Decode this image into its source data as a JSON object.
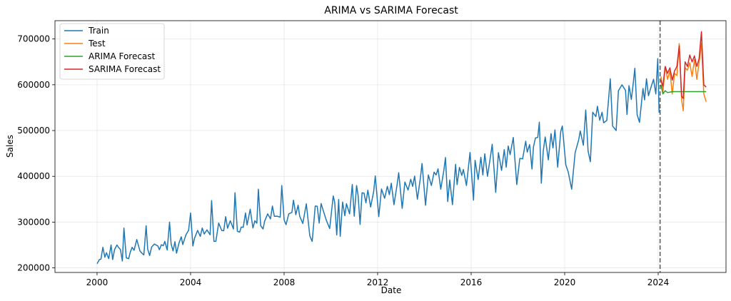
{
  "chart_data": {
    "type": "line",
    "title": "ARIMA vs SARIMA Forecast",
    "xlabel": "Date",
    "ylabel": "Sales",
    "xlim": [
      1998.2,
      2026.9
    ],
    "ylim": [
      190000,
      740000
    ],
    "xticks": [
      2000,
      2004,
      2008,
      2012,
      2016,
      2020,
      2024
    ],
    "xtick_labels": [
      "2000",
      "2004",
      "2008",
      "2012",
      "2016",
      "2020",
      "2024"
    ],
    "yticks": [
      200000,
      300000,
      400000,
      500000,
      600000,
      700000
    ],
    "ytick_labels": [
      "200000",
      "300000",
      "400000",
      "500000",
      "600000",
      "700000"
    ],
    "grid": true,
    "legend_position": "top-left",
    "split_date": 2024.08,
    "train_base": {
      "start": 2000.0,
      "end": 2024.04,
      "v0": 215000,
      "v1": 570000,
      "amp0": 12000,
      "amp1": 30000,
      "curve": 0.3
    },
    "series": [
      {
        "name": "Train",
        "color": "#1f77b4",
        "keypoints": [
          [
            2000.0,
            209000
          ],
          [
            2000.1,
            218000
          ],
          [
            2000.25,
            245000
          ],
          [
            2000.4,
            233000
          ],
          [
            2000.6,
            250000
          ],
          [
            2000.75,
            240000
          ],
          [
            2000.85,
            250000
          ],
          [
            2001.0,
            240000
          ],
          [
            2001.15,
            287000
          ],
          [
            2001.25,
            222000
          ],
          [
            2001.35,
            220000
          ],
          [
            2001.5,
            245000
          ],
          [
            2001.7,
            262000
          ],
          [
            2001.9,
            233000
          ],
          [
            2002.1,
            292000
          ],
          [
            2002.25,
            227000
          ],
          [
            2002.45,
            252000
          ],
          [
            2002.6,
            248000
          ],
          [
            2002.9,
            258000
          ],
          [
            2003.1,
            300000
          ],
          [
            2003.25,
            237000
          ],
          [
            2003.4,
            232000
          ],
          [
            2003.6,
            268000
          ],
          [
            2003.8,
            272000
          ],
          [
            2004.0,
            320000
          ],
          [
            2004.1,
            248000
          ],
          [
            2004.3,
            282000
          ],
          [
            2004.5,
            287000
          ],
          [
            2004.7,
            283000
          ],
          [
            2004.9,
            347000
          ],
          [
            2005.0,
            258000
          ],
          [
            2005.2,
            298000
          ],
          [
            2005.5,
            312000
          ],
          [
            2005.7,
            303000
          ],
          [
            2005.9,
            364000
          ],
          [
            2006.0,
            280000
          ],
          [
            2006.1,
            278000
          ],
          [
            2006.35,
            320000
          ],
          [
            2006.55,
            328000
          ],
          [
            2006.75,
            303000
          ],
          [
            2006.9,
            372000
          ],
          [
            2007.0,
            292000
          ],
          [
            2007.1,
            285000
          ],
          [
            2007.3,
            318000
          ],
          [
            2007.5,
            335000
          ],
          [
            2007.7,
            313000
          ],
          [
            2007.9,
            380000
          ],
          [
            2008.0,
            305000
          ],
          [
            2008.2,
            318000
          ],
          [
            2008.4,
            348000
          ],
          [
            2008.6,
            337000
          ],
          [
            2008.8,
            297000
          ],
          [
            2008.95,
            340000
          ],
          [
            2009.1,
            270000
          ],
          [
            2009.2,
            258000
          ],
          [
            2009.5,
            298000
          ],
          [
            2009.8,
            305000
          ],
          [
            2009.95,
            286000
          ],
          [
            2010.1,
            357000
          ],
          [
            2010.25,
            272000
          ],
          [
            2010.4,
            269000
          ],
          [
            2010.6,
            314000
          ],
          [
            2010.8,
            318000
          ],
          [
            2011.0,
            313000
          ],
          [
            2011.1,
            380000
          ],
          [
            2011.25,
            295000
          ],
          [
            2011.5,
            342000
          ],
          [
            2011.7,
            333000
          ],
          [
            2011.9,
            401000
          ],
          [
            2012.05,
            312000
          ],
          [
            2012.3,
            352000
          ],
          [
            2012.5,
            360000
          ],
          [
            2012.7,
            338000
          ],
          [
            2012.9,
            408000
          ],
          [
            2013.05,
            330000
          ],
          [
            2013.3,
            370000
          ],
          [
            2013.5,
            378000
          ],
          [
            2013.7,
            350000
          ],
          [
            2013.9,
            428000
          ],
          [
            2014.05,
            337000
          ],
          [
            2014.3,
            380000
          ],
          [
            2014.5,
            403000
          ],
          [
            2014.7,
            372000
          ],
          [
            2014.9,
            441000
          ],
          [
            2015.0,
            345000
          ],
          [
            2015.2,
            338000
          ],
          [
            2015.4,
            382000
          ],
          [
            2015.6,
            402000
          ],
          [
            2015.8,
            380000
          ],
          [
            2015.95,
            452000
          ],
          [
            2016.1,
            348000
          ],
          [
            2016.3,
            393000
          ],
          [
            2016.5,
            403000
          ],
          [
            2016.7,
            400000
          ],
          [
            2016.9,
            470000
          ],
          [
            2017.05,
            365000
          ],
          [
            2017.3,
            413000
          ],
          [
            2017.5,
            420000
          ],
          [
            2017.8,
            485000
          ],
          [
            2017.95,
            382000
          ],
          [
            2018.2,
            438000
          ],
          [
            2018.4,
            453000
          ],
          [
            2018.6,
            416000
          ],
          [
            2018.85,
            485000
          ],
          [
            2019.0,
            385000
          ],
          [
            2019.3,
            436000
          ],
          [
            2019.5,
            462000
          ],
          [
            2019.7,
            420000
          ],
          [
            2019.9,
            510000
          ],
          [
            2020.05,
            425000
          ],
          [
            2020.15,
            410000
          ],
          [
            2020.3,
            372000
          ],
          [
            2020.45,
            452000
          ],
          [
            2020.6,
            480000
          ],
          [
            2020.8,
            468000
          ],
          [
            2020.9,
            545000
          ],
          [
            2021.0,
            455000
          ],
          [
            2021.1,
            432000
          ],
          [
            2021.2,
            540000
          ],
          [
            2021.4,
            553000
          ],
          [
            2021.6,
            540000
          ],
          [
            2021.8,
            522000
          ],
          [
            2021.95,
            613000
          ],
          [
            2022.05,
            510000
          ],
          [
            2022.2,
            500000
          ],
          [
            2022.3,
            587000
          ],
          [
            2022.45,
            600000
          ],
          [
            2022.6,
            588000
          ],
          [
            2022.75,
            598000
          ],
          [
            2022.85,
            568000
          ],
          [
            2023.0,
            636000
          ],
          [
            2023.1,
            535000
          ],
          [
            2023.2,
            518000
          ],
          [
            2023.35,
            592000
          ],
          [
            2023.5,
            613000
          ],
          [
            2023.7,
            596000
          ],
          [
            2023.8,
            612000
          ],
          [
            2023.9,
            580000
          ],
          [
            2023.98,
            657000
          ],
          [
            2024.04,
            540000
          ],
          [
            2024.1,
            545000
          ]
        ]
      },
      {
        "name": "Test",
        "color": "#ff7f0e",
        "keypoints": [
          [
            2024.12,
            618000
          ],
          [
            2024.2,
            583000
          ],
          [
            2024.3,
            640000
          ],
          [
            2024.4,
            612000
          ],
          [
            2024.5,
            630000
          ],
          [
            2024.6,
            580000
          ],
          [
            2024.7,
            625000
          ],
          [
            2024.8,
            620000
          ],
          [
            2024.9,
            690000
          ],
          [
            2025.0,
            567000
          ],
          [
            2025.07,
            543000
          ],
          [
            2025.15,
            637000
          ],
          [
            2025.25,
            632000
          ],
          [
            2025.35,
            648000
          ],
          [
            2025.45,
            618000
          ],
          [
            2025.55,
            655000
          ],
          [
            2025.65,
            612000
          ],
          [
            2025.75,
            648000
          ],
          [
            2025.85,
            690000
          ],
          [
            2025.95,
            580000
          ],
          [
            2026.05,
            563000
          ]
        ]
      },
      {
        "name": "ARIMA Forecast",
        "color": "#2ca02c",
        "keypoints": [
          [
            2024.12,
            600000
          ],
          [
            2024.2,
            580000
          ],
          [
            2024.3,
            587000
          ],
          [
            2024.4,
            583000
          ],
          [
            2024.6,
            585000
          ],
          [
            2025.0,
            585000
          ],
          [
            2025.5,
            585000
          ],
          [
            2026.05,
            585000
          ]
        ]
      },
      {
        "name": "SARIMA Forecast",
        "color": "#d62728",
        "keypoints": [
          [
            2024.12,
            610000
          ],
          [
            2024.2,
            597000
          ],
          [
            2024.3,
            640000
          ],
          [
            2024.4,
            625000
          ],
          [
            2024.5,
            637000
          ],
          [
            2024.6,
            610000
          ],
          [
            2024.7,
            630000
          ],
          [
            2024.8,
            640000
          ],
          [
            2024.9,
            685000
          ],
          [
            2025.0,
            575000
          ],
          [
            2025.07,
            570000
          ],
          [
            2025.15,
            650000
          ],
          [
            2025.25,
            640000
          ],
          [
            2025.35,
            665000
          ],
          [
            2025.45,
            650000
          ],
          [
            2025.55,
            663000
          ],
          [
            2025.65,
            640000
          ],
          [
            2025.75,
            657000
          ],
          [
            2025.85,
            716000
          ],
          [
            2025.95,
            600000
          ],
          [
            2026.05,
            595000
          ]
        ]
      }
    ]
  }
}
